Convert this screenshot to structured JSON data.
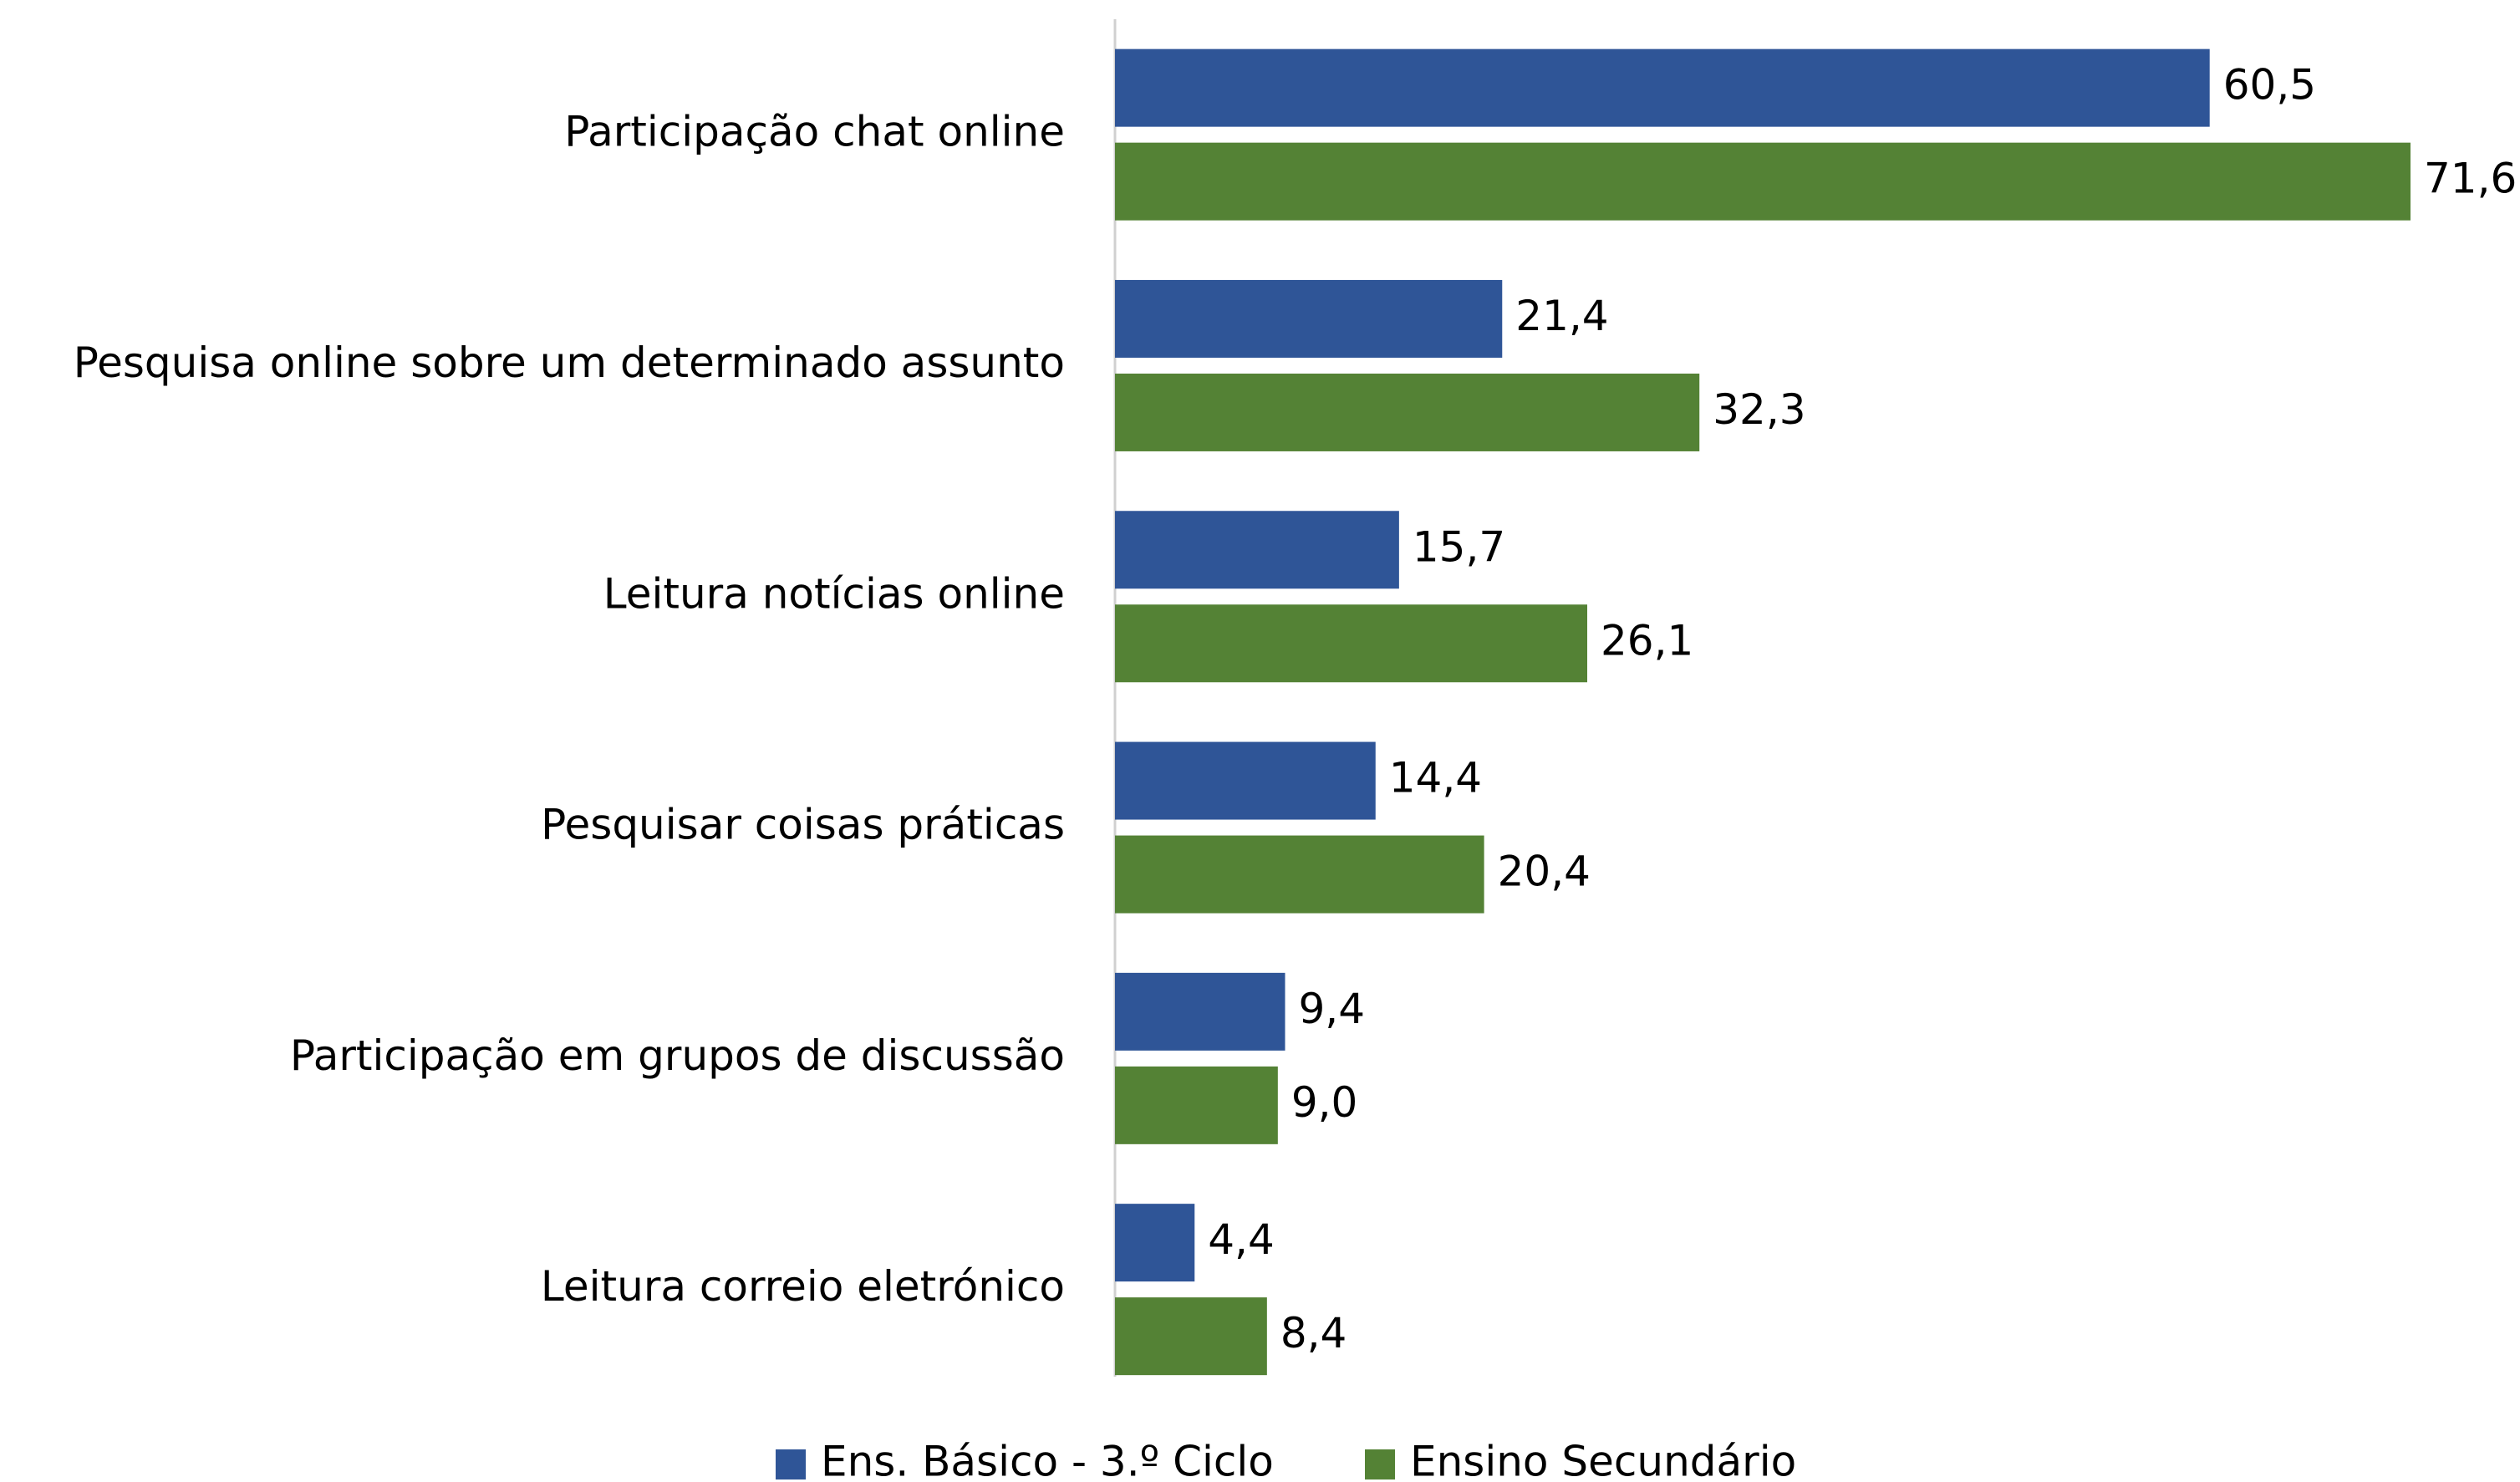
{
  "chart_data": {
    "type": "hbar",
    "categories": [
      "Participação chat online",
      "Pesquisa online sobre um determinado assunto",
      "Leitura notícias online",
      "Pesquisar coisas práticas",
      "Participação em grupos de discussão",
      "Leitura correio eletrónico"
    ],
    "series": [
      {
        "name": "Ens. Básico - 3.º Ciclo",
        "color": "#2f5597",
        "values": [
          60.5,
          21.4,
          15.7,
          14.4,
          9.4,
          4.4
        ],
        "value_labels": [
          "60,5",
          "21,4",
          "15,7",
          "14,4",
          "9,4",
          "4,4"
        ]
      },
      {
        "name": "Ensino Secundário",
        "color": "#548235",
        "values": [
          71.6,
          32.3,
          26.1,
          20.4,
          9.0,
          8.4
        ],
        "value_labels": [
          "71,6",
          "32,3",
          "26,1",
          "20,4",
          "9,0",
          "8,4"
        ]
      }
    ],
    "legend": "bottom"
  }
}
